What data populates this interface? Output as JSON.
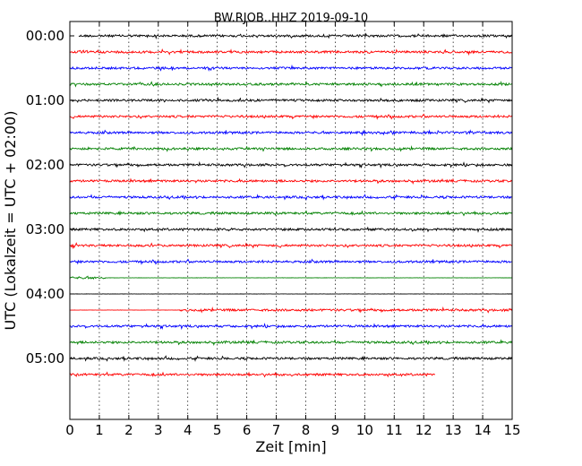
{
  "chart_data": {
    "type": "line",
    "title": "BW.RJOB..HHZ 2019-09-10",
    "xlabel": "Zeit  [min]",
    "ylabel": "UTC (Lokalzeit = UTC + 02:00)",
    "xlim": [
      0,
      15
    ],
    "x_ticks": [
      "0",
      "1",
      "2",
      "3",
      "4",
      "5",
      "6",
      "7",
      "8",
      "9",
      "10",
      "11",
      "12",
      "13",
      "14",
      "15"
    ],
    "y_ticks": [
      "00:00",
      "01:00",
      "02:00",
      "03:00",
      "04:00",
      "05:00"
    ],
    "grid": {
      "x": true,
      "y": false
    },
    "trace_colors": [
      "#000000",
      "#ff0000",
      "#0000ff",
      "#008000"
    ],
    "traces": [
      {
        "row": 0,
        "start_min": 0.3,
        "end_min": 15,
        "color": "#000000"
      },
      {
        "row": 1,
        "start_min": 0,
        "end_min": 15,
        "color": "#ff0000"
      },
      {
        "row": 2,
        "start_min": 0,
        "end_min": 15,
        "color": "#0000ff"
      },
      {
        "row": 3,
        "start_min": 0,
        "end_min": 15,
        "color": "#008000"
      },
      {
        "row": 4,
        "start_min": 0,
        "end_min": 15,
        "color": "#000000"
      },
      {
        "row": 5,
        "start_min": 0,
        "end_min": 15,
        "color": "#ff0000"
      },
      {
        "row": 6,
        "start_min": 0,
        "end_min": 15,
        "color": "#0000ff"
      },
      {
        "row": 7,
        "start_min": 0,
        "end_min": 15,
        "color": "#008000"
      },
      {
        "row": 8,
        "start_min": 0,
        "end_min": 15,
        "color": "#000000"
      },
      {
        "row": 9,
        "start_min": 0,
        "end_min": 15,
        "color": "#ff0000"
      },
      {
        "row": 10,
        "start_min": 0,
        "end_min": 15,
        "color": "#0000ff"
      },
      {
        "row": 11,
        "start_min": 0,
        "end_min": 15,
        "color": "#008000"
      },
      {
        "row": 12,
        "start_min": 0,
        "end_min": 15,
        "color": "#000000"
      },
      {
        "row": 13,
        "start_min": 0,
        "end_min": 15,
        "color": "#ff0000"
      },
      {
        "row": 14,
        "start_min": 0,
        "end_min": 15,
        "color": "#0000ff"
      },
      {
        "row": 15,
        "start_min": 0,
        "end_min": 15,
        "color": "#008000",
        "noisy_until_min": 1.2
      },
      {
        "row": 16,
        "start_min": 0,
        "end_min": 15,
        "color": "#000000",
        "noisy_until_min": 0
      },
      {
        "row": 17,
        "start_min": 0,
        "end_min": 15,
        "color": "#ff0000",
        "noisy_from_min": 3.7
      },
      {
        "row": 18,
        "start_min": 0,
        "end_min": 15,
        "color": "#0000ff"
      },
      {
        "row": 19,
        "start_min": 0,
        "end_min": 15,
        "color": "#008000"
      },
      {
        "row": 20,
        "start_min": 0,
        "end_min": 15,
        "color": "#000000"
      },
      {
        "row": 21,
        "start_min": 0,
        "end_min": 12.4,
        "color": "#ff0000"
      }
    ]
  }
}
